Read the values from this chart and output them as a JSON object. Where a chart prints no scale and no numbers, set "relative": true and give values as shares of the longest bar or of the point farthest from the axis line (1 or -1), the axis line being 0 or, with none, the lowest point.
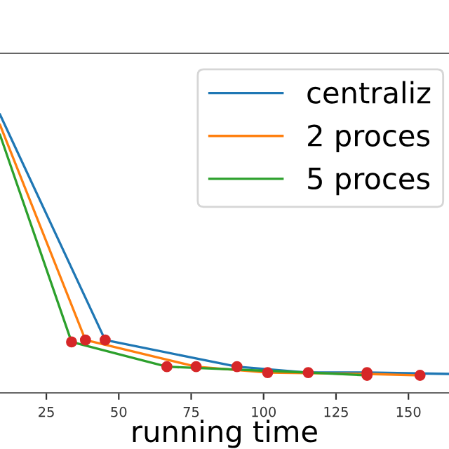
{
  "chart_data": {
    "type": "line",
    "xlabel": "running time",
    "relative": true,
    "xlim": [
      9,
      164
    ],
    "xticks": [
      25,
      50,
      75,
      100,
      125,
      150
    ],
    "tick_labels": "x",
    "legend": "top right",
    "grid": false,
    "series": [
      {
        "name": "centraliz",
        "color": "#1f77b4",
        "x": [
          9,
          45.3,
          90.8,
          115.4,
          135.7,
          164
        ],
        "values": [
          1.0,
          0.19,
          0.094,
          0.073,
          0.073,
          0.068
        ]
      },
      {
        "name": "2 proces",
        "color": "#ff7f0e",
        "x": [
          9,
          38.5,
          76.7,
          101.4,
          135.7,
          154
        ],
        "values": [
          0.963,
          0.19,
          0.094,
          0.073,
          0.068,
          0.063
        ]
      },
      {
        "name": "5 proces",
        "color": "#2ca02c",
        "x": [
          9,
          33.7,
          66.6,
          115.4,
          135.7
        ],
        "values": [
          0.927,
          0.183,
          0.094,
          0.073,
          0.063
        ]
      },
      {
        "type": "scatter",
        "color": "#d62728",
        "marker": "circle",
        "x": [
          33.7,
          38.5,
          45.3,
          66.6,
          76.7,
          90.8,
          101.4,
          115.4,
          135.7,
          135.7,
          154
        ],
        "values": [
          0.183,
          0.19,
          0.19,
          0.094,
          0.094,
          0.094,
          0.073,
          0.073,
          0.073,
          0.063,
          0.063
        ]
      }
    ]
  }
}
